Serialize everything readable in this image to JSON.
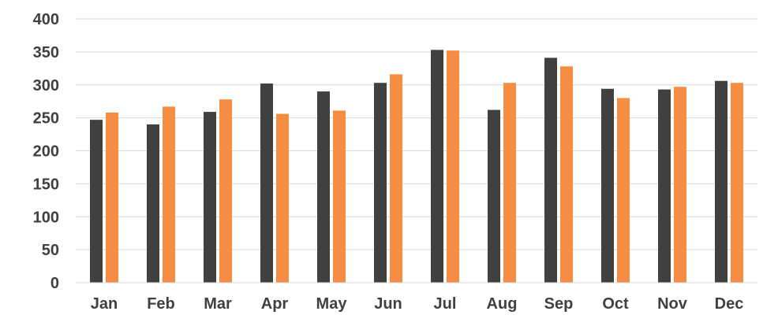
{
  "chart_data": {
    "type": "bar",
    "categories": [
      "Jan",
      "Feb",
      "Mar",
      "Apr",
      "May",
      "Jun",
      "Jul",
      "Aug",
      "Sep",
      "Oct",
      "Nov",
      "Dec"
    ],
    "series": [
      {
        "values": [
          247,
          240,
          259,
          302,
          290,
          303,
          353,
          262,
          341,
          294,
          293,
          306
        ],
        "color": "#404040"
      },
      {
        "values": [
          258,
          267,
          278,
          256,
          261,
          316,
          352,
          303,
          328,
          280,
          297,
          303
        ],
        "color": "#f58d42"
      }
    ],
    "ylim": [
      0,
      400
    ],
    "yticks": [
      0,
      50,
      100,
      150,
      200,
      250,
      300,
      350,
      400
    ],
    "title": "",
    "xlabel": "",
    "ylabel": "",
    "grid": true,
    "legend": "none"
  }
}
